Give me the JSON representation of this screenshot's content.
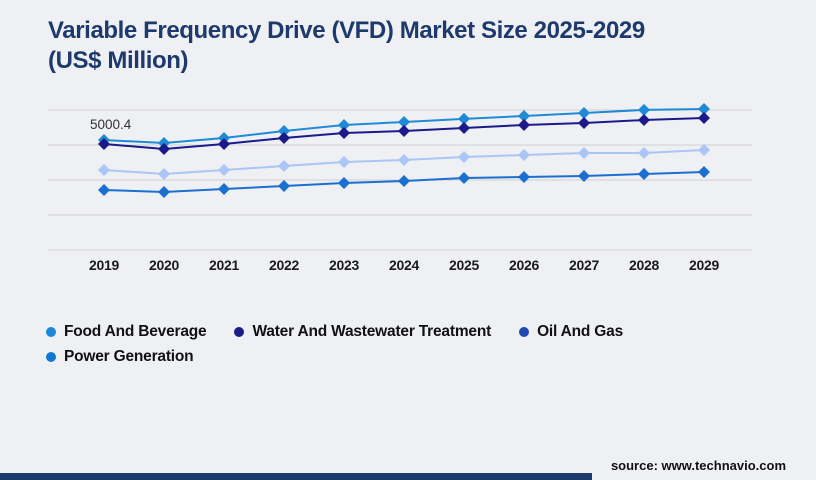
{
  "page": {
    "title_lines": {
      "line1": "Variable Frequency Drive (VFD) Market Size 2025-2029",
      "line2": "(US$ Million)"
    },
    "source": "source: www.technavio.com",
    "background_color": "#eff0f4",
    "title_color": "#1e3a6d",
    "footer_bar_color": "#1e3a6d",
    "gridline_color": "#d6d6d6"
  },
  "chart_data": {
    "type": "line",
    "title": "Variable Frequency Drive (VFD) Market Size 2025-2029 (US$ Million)",
    "xlabel": "",
    "ylabel": "US$ Million",
    "x": [
      2019,
      2020,
      2021,
      2022,
      2023,
      2024,
      2025,
      2026,
      2027,
      2028,
      2029
    ],
    "ylim": [
      0,
      7000
    ],
    "grid": "horizontal",
    "y_axis_labels_visible": false,
    "legend_position": "bottom",
    "marker": "diamond",
    "annotation": {
      "series": "Food And Beverage",
      "x": 2019,
      "label": "5000.4"
    },
    "series": [
      {
        "name": "Food And Beverage",
        "line_color": "#1f8ad6",
        "legend_color": "#1b87d8",
        "values": [
          5000.4,
          4865,
          5093,
          5411,
          5684,
          5820,
          5957,
          6093,
          6229,
          6366,
          6411
        ]
      },
      {
        "name": "Water And Wastewater Treatment",
        "line_color": "#1a1a8a",
        "legend_color": "#1b1b8a",
        "values": [
          4820,
          4592,
          4820,
          5093,
          5320,
          5411,
          5547,
          5684,
          5775,
          5911,
          6002
        ]
      },
      {
        "name": "Oil And Gas",
        "line_color": "#a9c6f6",
        "legend_color": "#2147b2",
        "values": [
          3637,
          3455,
          3637,
          3819,
          4001,
          4092,
          4228,
          4319,
          4410,
          4410,
          4547
        ]
      },
      {
        "name": "Power Generation",
        "line_color": "#1a6fd0",
        "legend_color": "#1276d3",
        "values": [
          2728,
          2637,
          2773,
          2910,
          3046,
          3137,
          3273,
          3319,
          3365,
          3456,
          3547
        ]
      }
    ]
  }
}
